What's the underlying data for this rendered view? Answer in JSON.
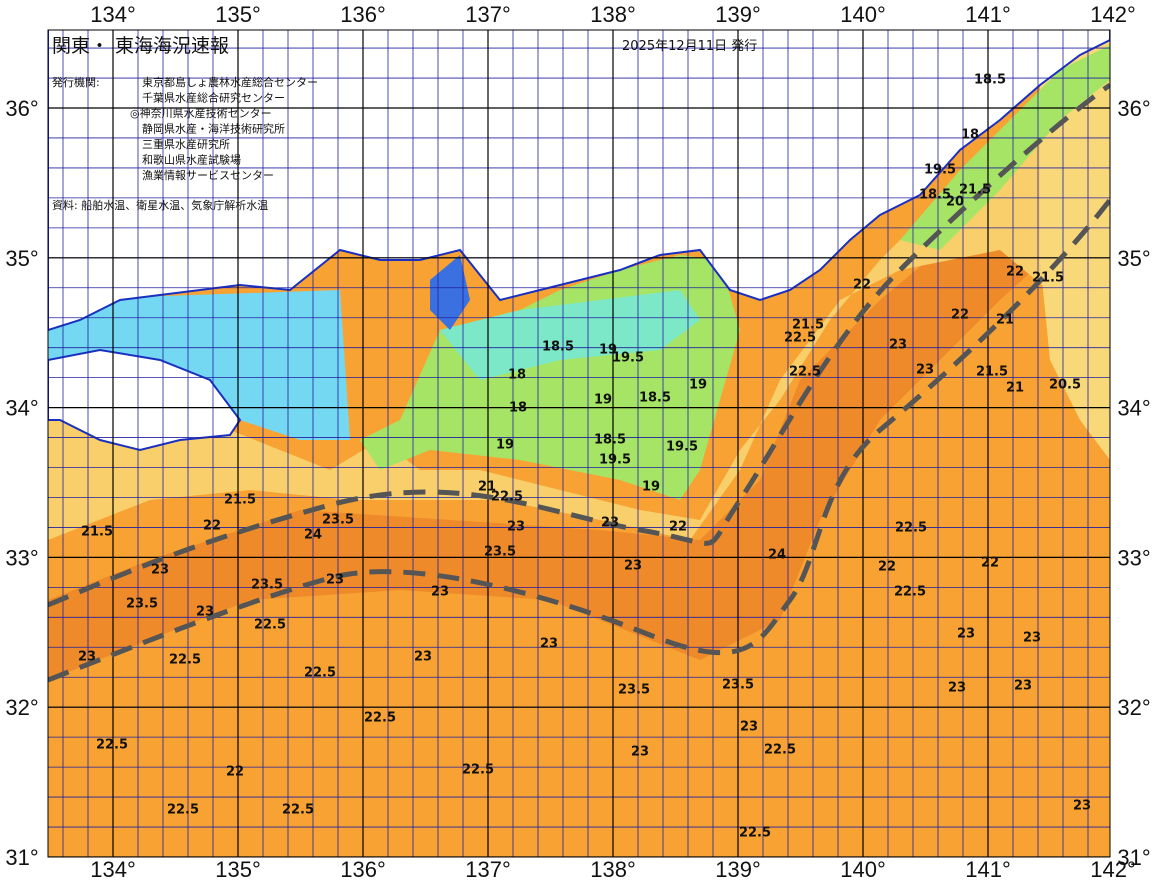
{
  "header": {
    "title": "関東・ 東海海況速報",
    "date": "2025年12月11日 発行",
    "issuer_label": "発行機関:",
    "issuers": [
      "東京都島しょ農林水産総合センター",
      "千葉県水産総合研究センター",
      "◎神奈川県水産技術センター",
      "静岡県水産・海洋技術研究所",
      "三重県水産研究所",
      "和歌山県水産試験場",
      "漁業情報サービスセンター"
    ],
    "source": "資料: 船舶水温、衛星水温、気象庁解析水温"
  },
  "map": {
    "lon_ticks": [
      {
        "value": 134,
        "label": "134°"
      },
      {
        "value": 135,
        "label": "135°"
      },
      {
        "value": 136,
        "label": "136°"
      },
      {
        "value": 137,
        "label": "137°"
      },
      {
        "value": 138,
        "label": "138°"
      },
      {
        "value": 139,
        "label": "139°"
      },
      {
        "value": 140,
        "label": "140°"
      },
      {
        "value": 141,
        "label": "141°"
      },
      {
        "value": 142,
        "label": "142°"
      }
    ],
    "lat_ticks": [
      {
        "value": 31,
        "label": "31°"
      },
      {
        "value": 32,
        "label": "32°"
      },
      {
        "value": 33,
        "label": "33°"
      },
      {
        "value": 34,
        "label": "34°"
      },
      {
        "value": 35,
        "label": "35°"
      },
      {
        "value": 36,
        "label": "36°"
      }
    ],
    "contour_labels": [
      18.5,
      18,
      19.5,
      18.5,
      20,
      21.5,
      22,
      21.5,
      22,
      21,
      22,
      21.5,
      22.5,
      23,
      23,
      22.5,
      21.5,
      21,
      20.5,
      18.5,
      19,
      19.5,
      18,
      18,
      19,
      18.5,
      19,
      19,
      18.5,
      19.5,
      19.5,
      19,
      21,
      22.5,
      23,
      23,
      22,
      21.5,
      21.5,
      22,
      24,
      23.5,
      23.5,
      23,
      23.5,
      23,
      23,
      23,
      24,
      22,
      22,
      22.5,
      22.5,
      23.5,
      23,
      22.5,
      23,
      22.5,
      22.5,
      23,
      23,
      23,
      23,
      23,
      23,
      23.5,
      23.5,
      22.5,
      22.5,
      23,
      22.5,
      23,
      22.5,
      22,
      22.5,
      22.5,
      23,
      22.5
    ]
  }
}
